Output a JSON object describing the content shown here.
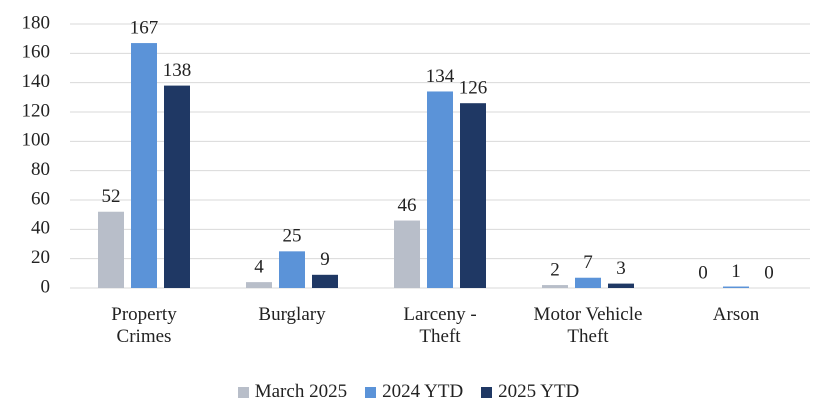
{
  "chart_data": {
    "type": "bar",
    "categories": [
      "Property\nCrimes",
      "Burglary",
      "Larceny -\nTheft",
      "Motor Vehicle\nTheft",
      "Arson"
    ],
    "series": [
      {
        "name": "March 2025",
        "color": "#b8bec9",
        "values": [
          52,
          4,
          46,
          2,
          0
        ]
      },
      {
        "name": "2024 YTD",
        "color": "#5b93d8",
        "values": [
          167,
          25,
          134,
          7,
          1
        ]
      },
      {
        "name": "2025 YTD",
        "color": "#1f3864",
        "values": [
          138,
          9,
          126,
          3,
          0
        ]
      }
    ],
    "ylim": [
      0,
      180
    ],
    "yticks": [
      0,
      20,
      40,
      60,
      80,
      100,
      120,
      140,
      160,
      180
    ],
    "grid": true,
    "legend": "bottom"
  }
}
